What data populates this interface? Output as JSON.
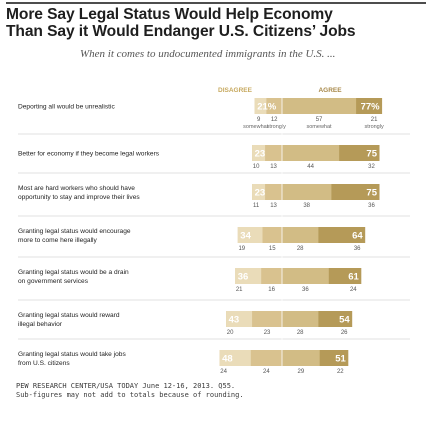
{
  "title_line1": "More Say Legal Status Would Help Economy",
  "title_line2": "Than Say it Would Endanger U.S. Citizens’ Jobs",
  "subtitle": "When it comes to undocumented immigrants in the U.S. ...",
  "footer_line1": "PEW RESEARCH CENTER/USA TODAY June 12-16, 2013. Q55.",
  "footer_line2": "Sub-figures may not add to totals because of rounding.",
  "colors": {
    "disagree": "#d9c28f",
    "disagree_light": "#eadcb9",
    "agree": "#b59a58",
    "agree_light": "#d2bc85",
    "disagree_label": "#c7a95f",
    "agree_label": "#a8894a"
  },
  "chart_data": {
    "type": "bar",
    "orientation": "horizontal-diverging",
    "legend": [
      "DISAGREE",
      "AGREE"
    ],
    "sub_labels": [
      "somewhat",
      "strongly"
    ],
    "categories": [
      "Deporting all would be unrealistic",
      "Better for economy if they become legal workers",
      "Most are hard workers who should have opportunity to stay and improve their lives",
      "Granting legal status would encourage more to come here illegally",
      "Granting legal status would be a drain on government services",
      "Granting legal status would reward illegal behavior",
      "Granting legal status would take jobs from U.S. citizens"
    ],
    "category_lines": [
      [
        "Deporting all would be unrealistic"
      ],
      [
        "Better for economy if they become legal workers"
      ],
      [
        "Most are hard workers who should have",
        "opportunity to stay and improve their lives"
      ],
      [
        "Granting legal status would encourage",
        "more to come here illegally"
      ],
      [
        "Granting legal status would be a drain",
        "on government services"
      ],
      [
        "Granting legal status would reward",
        "illegal behavior"
      ],
      [
        "Granting legal status would take jobs",
        "from U.S. citizens"
      ]
    ],
    "series": [
      {
        "name": "DISAGREE",
        "values": [
          21,
          23,
          23,
          34,
          36,
          43,
          48
        ],
        "somewhat": [
          9,
          10,
          11,
          19,
          21,
          20,
          24
        ],
        "strongly": [
          12,
          13,
          13,
          15,
          16,
          23,
          24
        ]
      },
      {
        "name": "AGREE",
        "values": [
          77,
          75,
          75,
          64,
          61,
          54,
          51
        ],
        "somewhat": [
          57,
          44,
          38,
          28,
          36,
          28,
          29
        ],
        "strongly": [
          21,
          32,
          36,
          36,
          24,
          26,
          22
        ]
      }
    ],
    "value_labels": {
      "disagree": [
        "21%",
        "23",
        "23",
        "34",
        "36",
        "43",
        "48"
      ],
      "agree": [
        "77%",
        "75",
        "75",
        "64",
        "61",
        "54",
        "51"
      ]
    }
  }
}
